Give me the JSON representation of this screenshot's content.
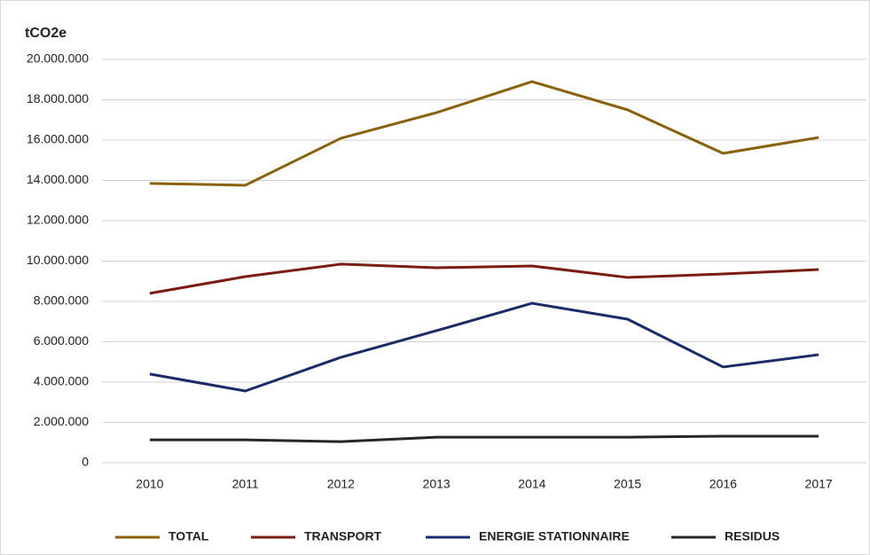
{
  "chart_data": {
    "type": "line",
    "y_label": "tCO2e",
    "categories": [
      "2010",
      "2011",
      "2012",
      "2013",
      "2014",
      "2015",
      "2016",
      "2017"
    ],
    "series": [
      {
        "name": "TOTAL",
        "color": "#8a6108",
        "values": [
          13850000,
          13760000,
          16090000,
          17360000,
          18900000,
          17500000,
          15340000,
          16130000
        ]
      },
      {
        "name": "TRANSPORT",
        "color": "#7b1c12",
        "values": [
          8400000,
          9230000,
          9850000,
          9670000,
          9760000,
          9190000,
          9360000,
          9580000
        ]
      },
      {
        "name": "ENERGIE STATIONNAIRE",
        "color": "#1b2a68",
        "values": [
          4400000,
          3560000,
          5230000,
          6550000,
          7910000,
          7120000,
          4750000,
          5360000
        ]
      },
      {
        "name": "RESIDUS",
        "color": "#262626",
        "values": [
          1140000,
          1140000,
          1050000,
          1270000,
          1270000,
          1270000,
          1320000,
          1320000
        ]
      }
    ],
    "ylim": [
      0,
      20000000
    ],
    "yticks": [
      0,
      {
        "value": 2000000,
        "label": "2.000.000"
      },
      {
        "value": 4000000,
        "label": "4.000.000"
      },
      {
        "value": 6000000,
        "label": "6.000.000"
      },
      {
        "value": 8000000,
        "label": "8.000.000"
      },
      {
        "value": 10000000,
        "label": "10.000.000"
      },
      {
        "value": 12000000,
        "label": "12.000.000"
      },
      {
        "value": 14000000,
        "label": "14.000.000"
      },
      {
        "value": 16000000,
        "label": "16.000.000"
      },
      {
        "value": 18000000,
        "label": "18.000.000"
      },
      {
        "value": 20000000,
        "label": "20.000.000"
      }
    ],
    "grid": true,
    "legend": "bottom"
  }
}
